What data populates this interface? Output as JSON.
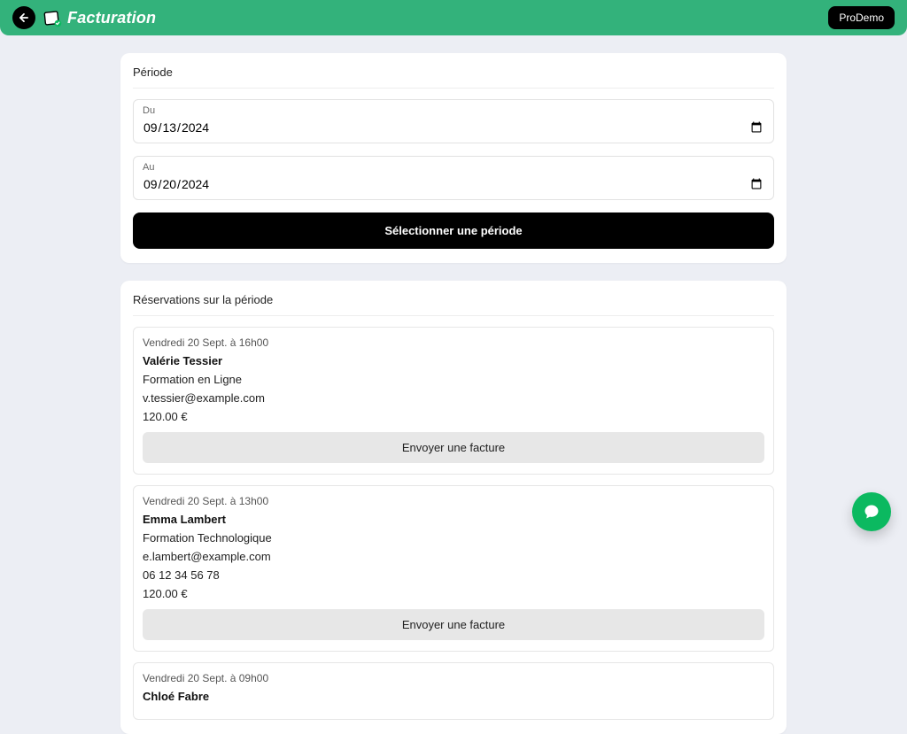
{
  "colors": {
    "header_bg": "#33b27b",
    "page_bg": "#eceef4",
    "card_bg": "#ffffff",
    "primary_btn_bg": "#000000",
    "primary_btn_text": "#ffffff",
    "secondary_btn_bg": "#e7e7e7",
    "chat_bg": "#0bb960",
    "badge_bg": "#000000"
  },
  "header": {
    "title": "Facturation",
    "badge": "ProDemo"
  },
  "period": {
    "card_title": "Période",
    "from_label": "Du",
    "from_value": "2024-09-13",
    "from_display": "13/09/2024",
    "to_label": "Au",
    "to_value": "2024-09-20",
    "to_display": "20/09/2024",
    "button_label": "Sélectionner une période"
  },
  "reservations": {
    "card_title": "Réservations sur la période",
    "send_label": "Envoyer une facture",
    "items": [
      {
        "date": "Vendredi 20 Sept. à 16h00",
        "name": "Valérie Tessier",
        "service": "Formation en Ligne",
        "email": "v.tessier@example.com",
        "phone": "",
        "price": "120.00 €"
      },
      {
        "date": "Vendredi 20 Sept. à 13h00",
        "name": "Emma Lambert",
        "service": "Formation Technologique",
        "email": "e.lambert@example.com",
        "phone": "06 12 34 56 78",
        "price": "120.00 €"
      },
      {
        "date": "Vendredi 20 Sept. à 09h00",
        "name": "Chloé Fabre",
        "service": "",
        "email": "",
        "phone": "",
        "price": ""
      }
    ]
  }
}
